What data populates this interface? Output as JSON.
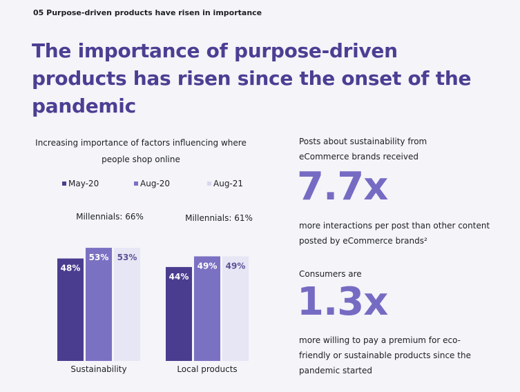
{
  "kicker": "05 Purpose-driven products have risen in importance",
  "headline": "The importance of purpose-driven products has risen since the onset of the pandemic",
  "chart_data": {
    "type": "bar",
    "title": "Increasing importance of factors influencing where people shop online",
    "categories": [
      "Sustainability",
      "Local products"
    ],
    "series": [
      {
        "name": "May-20",
        "values": [
          48,
          44
        ],
        "color": "#4a3d8f"
      },
      {
        "name": "Aug-20",
        "values": [
          53,
          49
        ],
        "color": "#7b71c2"
      },
      {
        "name": "Aug-21",
        "values": [
          53,
          49
        ],
        "color": "#e6e6f5"
      }
    ],
    "data_labels": [
      [
        "48%",
        "53%",
        "53%"
      ],
      [
        "44%",
        "49%",
        "49%"
      ]
    ],
    "group_notes": [
      "Millennials: 66%",
      "Millennials: 61%"
    ],
    "ylim": [
      0,
      100
    ],
    "legend_position": "top"
  },
  "stats": {
    "first_intro": "Posts about sustainability from eCommerce brands received",
    "first_value": "7.7x",
    "first_desc": "more interactions per post than other content posted by eCommerce brands²",
    "second_intro": "Consumers are",
    "second_value": "1.3x",
    "second_desc": "more willing to pay a premium for eco-friendly or sustainable products since the pandemic started"
  },
  "colors": {
    "accent_dark": "#4b3f93",
    "accent_light": "#766bc3",
    "background": "#f4f4f9"
  }
}
